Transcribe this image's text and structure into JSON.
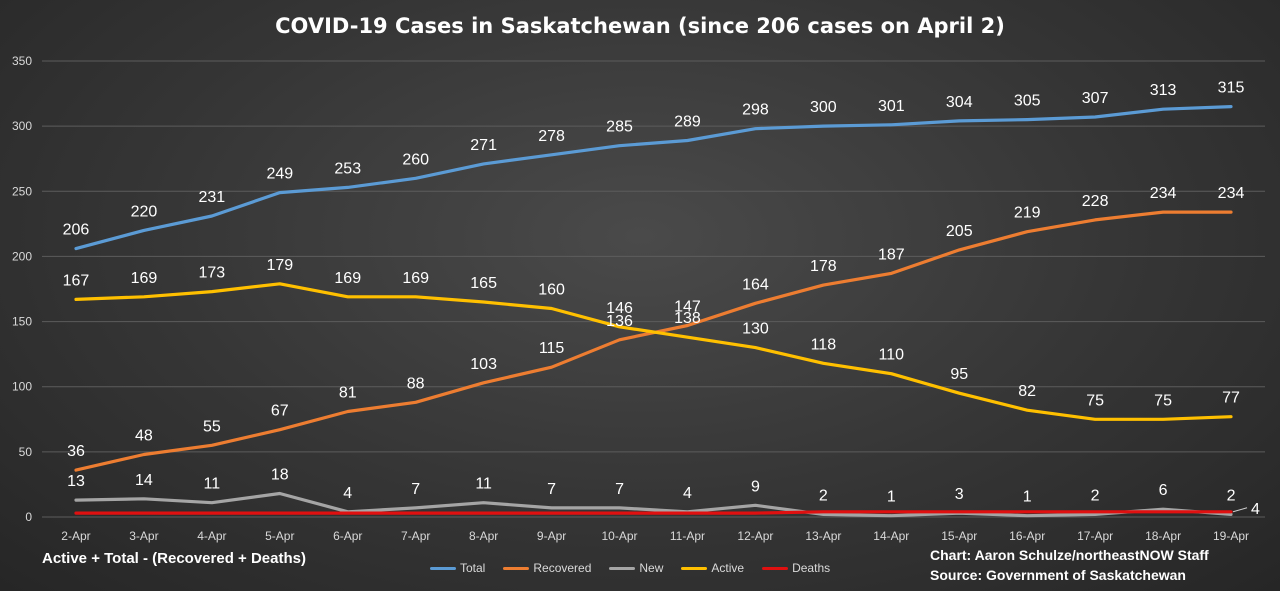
{
  "chart_data": {
    "type": "line",
    "title": "COVID-19 Cases in Saskatchewan (since 206 cases on April 2)",
    "categories": [
      "2-Apr",
      "3-Apr",
      "4-Apr",
      "5-Apr",
      "6-Apr",
      "7-Apr",
      "8-Apr",
      "9-Apr",
      "10-Apr",
      "11-Apr",
      "12-Apr",
      "13-Apr",
      "14-Apr",
      "15-Apr",
      "16-Apr",
      "17-Apr",
      "18-Apr",
      "19-Apr"
    ],
    "ylim": [
      0,
      350
    ],
    "yticks": [
      0,
      50,
      100,
      150,
      200,
      250,
      300,
      350
    ],
    "grid": true,
    "legend_position": "bottom",
    "series": [
      {
        "name": "Total",
        "color": "#5b9bd5",
        "labels": true,
        "values": [
          206,
          220,
          231,
          249,
          253,
          260,
          271,
          278,
          285,
          289,
          298,
          300,
          301,
          304,
          305,
          307,
          313,
          315
        ]
      },
      {
        "name": "Recovered",
        "color": "#ed7d31",
        "labels": true,
        "values": [
          36,
          48,
          55,
          67,
          81,
          88,
          103,
          115,
          136,
          147,
          164,
          178,
          187,
          205,
          219,
          228,
          234,
          234
        ]
      },
      {
        "name": "New",
        "color": "#a5a5a5",
        "labels": true,
        "values": [
          13,
          14,
          11,
          18,
          4,
          7,
          11,
          7,
          7,
          4,
          9,
          2,
          1,
          3,
          1,
          2,
          6,
          2
        ]
      },
      {
        "name": "Active",
        "color": "#ffc000",
        "labels": true,
        "values": [
          167,
          169,
          173,
          179,
          169,
          169,
          165,
          160,
          146,
          138,
          130,
          118,
          110,
          95,
          82,
          75,
          75,
          77
        ]
      },
      {
        "name": "Deaths",
        "color": "#e01010",
        "labels": false,
        "values": [
          3,
          3,
          3,
          3,
          3,
          3,
          3,
          3,
          3,
          3,
          3,
          4,
          4,
          4,
          4,
          4,
          4,
          4
        ]
      }
    ],
    "annotations": [
      {
        "text": "4",
        "series": "Deaths",
        "point": "19-Apr"
      }
    ]
  },
  "notes": {
    "formula": "Active + Total - (Recovered + Deaths)",
    "credit": "Chart: Aaron Schulze/northeastNOW Staff",
    "source": "Source: Government of Saskatchewan"
  }
}
